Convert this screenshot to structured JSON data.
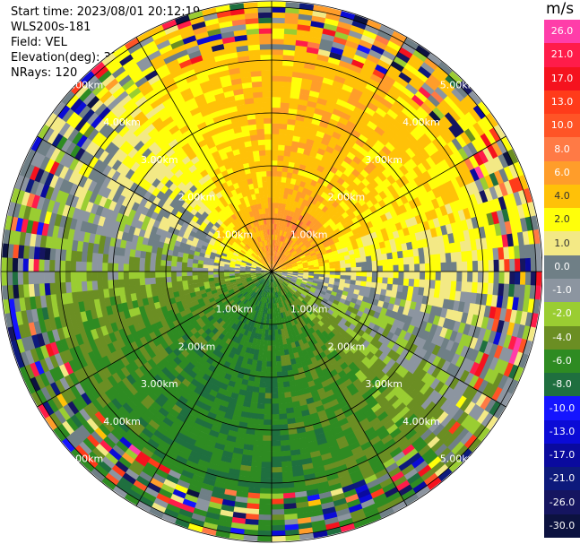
{
  "info": {
    "start_time": "Start time: 2023/08/01 20:12:19",
    "instrument": "WLS200s-181",
    "field": "Field: VEL",
    "elevation": "Elevation(deg): 35.30",
    "nrays": "NRays: 120"
  },
  "chart_data": {
    "type": "heatmap",
    "projection": "polar-ppi",
    "field": "VEL",
    "units": "m/s",
    "range_rings_km": [
      1.0,
      2.0,
      3.0,
      4.0,
      5.0
    ],
    "range_labels": [
      "1.00km",
      "2.00km",
      "3.00km",
      "4.00km",
      "5.00km"
    ],
    "max_range_km": 5.1,
    "n_rays": 120,
    "azimuth_spokes_deg": [
      0,
      30,
      60,
      90,
      120,
      150,
      180,
      210,
      240,
      270,
      300,
      330
    ],
    "colorbar": {
      "label": "m/s",
      "ticks": [
        "26.0",
        "21.0",
        "17.0",
        "13.0",
        "10.0",
        "8.0",
        "6.0",
        "4.0",
        "2.0",
        "1.0",
        "0.0",
        "-1.0",
        "-2.0",
        "-4.0",
        "-6.0",
        "-8.0",
        "-10.0",
        "-13.0",
        "-17.0",
        "-21.0",
        "-26.0",
        "-30.0"
      ],
      "colors": [
        "#ff3da9",
        "#ff1c4a",
        "#f5121e",
        "#ff3b1a",
        "#ff5426",
        "#ff7a45",
        "#ff9d2a",
        "#ffc108",
        "#ffff0a",
        "#f3e985",
        "#6f7f86",
        "#8c95a0",
        "#9acd32",
        "#6b8e23",
        "#2e8b22",
        "#1f6f3f",
        "#1515ff",
        "#0b0bd6",
        "#0a0a9e",
        "#0d1a7c",
        "#151560",
        "#0c1240"
      ]
    },
    "velocity_pattern": {
      "north_sector": "4.0 to 8.0 (positive, orange/yellow)",
      "east_sector": "2.0 to 4.0 (yellow)",
      "south_sector": "-2.0 to -6.0 (green)",
      "west_sector": "-2.0 to -4.0 (green)",
      "outer_ring": "mixed noise (-30.0 to 26.0)"
    }
  }
}
